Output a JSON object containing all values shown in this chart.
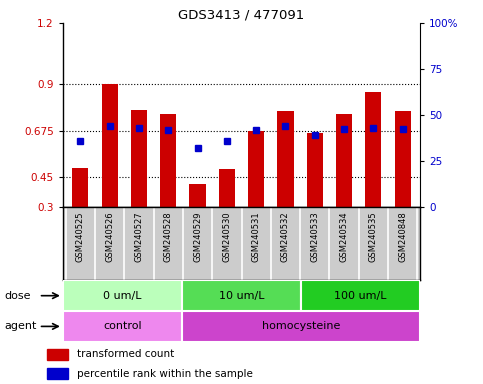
{
  "title": "GDS3413 / 477091",
  "samples": [
    "GSM240525",
    "GSM240526",
    "GSM240527",
    "GSM240528",
    "GSM240529",
    "GSM240530",
    "GSM240531",
    "GSM240532",
    "GSM240533",
    "GSM240534",
    "GSM240535",
    "GSM240848"
  ],
  "bar_values": [
    0.49,
    0.9,
    0.775,
    0.755,
    0.415,
    0.487,
    0.675,
    0.77,
    0.665,
    0.755,
    0.865,
    0.77
  ],
  "blue_values": [
    0.624,
    0.695,
    0.689,
    0.677,
    0.589,
    0.624,
    0.677,
    0.695,
    0.652,
    0.681,
    0.686,
    0.681
  ],
  "bar_color": "#cc0000",
  "blue_color": "#0000cc",
  "ylim_left": [
    0.3,
    1.2
  ],
  "ylim_right": [
    0,
    100
  ],
  "yticks_left": [
    0.3,
    0.45,
    0.675,
    0.9,
    1.2
  ],
  "yticks_right": [
    0,
    25,
    50,
    75,
    100
  ],
  "ytick_labels_left": [
    "0.3",
    "0.45",
    "0.675",
    "0.9",
    "1.2"
  ],
  "ytick_labels_right": [
    "0",
    "25",
    "50",
    "75",
    "100%"
  ],
  "dose_groups": [
    {
      "label": "0 um/L",
      "start": 0,
      "end": 4,
      "color": "#bbffbb"
    },
    {
      "label": "10 um/L",
      "start": 4,
      "end": 8,
      "color": "#55dd55"
    },
    {
      "label": "100 um/L",
      "start": 8,
      "end": 12,
      "color": "#22cc22"
    }
  ],
  "agent_groups": [
    {
      "label": "control",
      "start": 0,
      "end": 4,
      "color": "#ee88ee"
    },
    {
      "label": "homocysteine",
      "start": 4,
      "end": 12,
      "color": "#cc44cc"
    }
  ],
  "dose_label": "dose",
  "agent_label": "agent",
  "legend_bar": "transformed count",
  "legend_blue": "percentile rank within the sample",
  "tick_label_color_left": "#cc0000",
  "tick_label_color_right": "#0000cc",
  "bar_width": 0.55,
  "bg_color": "#ffffff",
  "plot_bg_color": "#ffffff",
  "label_bg_color": "#cccccc",
  "label_sep_color": "#ffffff"
}
